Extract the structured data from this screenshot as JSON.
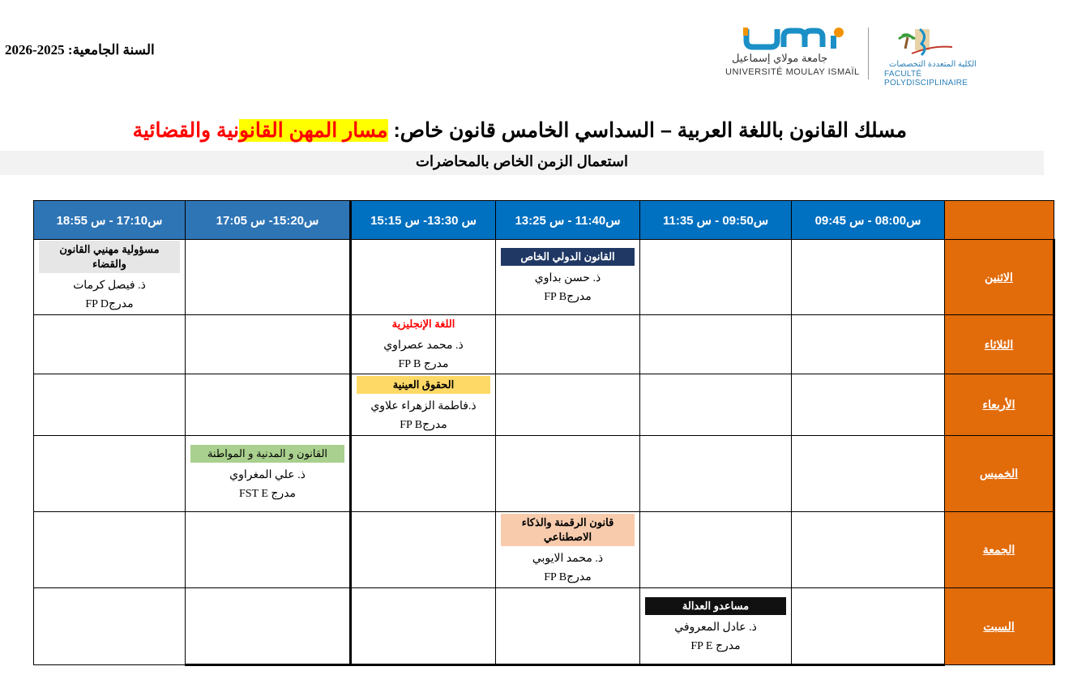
{
  "header": {
    "academic_year": "السنة الجامعية: 2025-2026",
    "university_logo": {
      "ar": "جامعة مولاي إسماعيل",
      "fr": "UNIVERSITÉ MOULAY ISMAÏL"
    },
    "faculty_logo": {
      "ar": "الكلية المتعددة التخصصات",
      "fr": "FACULTÉ POLYDISCIPLINAIRE"
    },
    "title_main": "مسلك القانون باللغة العربية – السداسي الخامس قانون خاص: ",
    "title_track_highlighted": "مسار المهن القانو",
    "title_track_rest": "نية والقضائية",
    "subtitle": "استعمال الزمن الخاص بالمحاضرات"
  },
  "colors": {
    "header_blue": "#0070c0",
    "day_orange": "#e26b0a",
    "title_red": "#ff0000",
    "highlight_yellow": "#ffff00"
  },
  "timetable": {
    "slots": [
      "س08:00 - س 09:45",
      "س09:50 - س 11:35",
      "س11:40 - س 13:25",
      "س 13:30- س 15:15",
      "س15:20- س 17:05",
      "س17:10 - س 18:55"
    ],
    "days": [
      {
        "name": "الاثنين",
        "sessions": {
          "2": {
            "title": "القانون الدولي الخاص",
            "bg": "#1f3864",
            "fg": "#ffffff",
            "prof": "ذ. حسن بداوي",
            "room": "مدرجFP B"
          },
          "5": {
            "title": "مسؤولية مهنيي القانون والقضاء",
            "bg": "#e6e6e6",
            "fg": "#000000",
            "prof": "ذ. فيصل كرمات",
            "room": "مدرجFP D"
          }
        }
      },
      {
        "name": "الثلاثاء",
        "sessions": {
          "3": {
            "title": "اللغة الإنجليزية",
            "bg": "transparent",
            "fg": "#ff0000",
            "prof": "ذ. محمد عصراوي",
            "room": "مدرج FP B"
          }
        }
      },
      {
        "name": "الأربعاء",
        "sessions": {
          "3": {
            "title": "الحقوق العينية",
            "bg": "#ffd966",
            "fg": "#000000",
            "prof": "ذ.فاطمة الزهراء علاوي",
            "room": "مدرجFP B"
          }
        }
      },
      {
        "name": "الخميس",
        "sessions": {
          "4": {
            "title": "القانون و المدنية و المواطنة",
            "bg": "#a9d08e",
            "fg": "#000000",
            "prof": "ذ. علي المغراوي",
            "room": "مدرج  FST E"
          }
        }
      },
      {
        "name": "الجمعة",
        "sessions": {
          "2": {
            "title": "قانون الرقمنة والذكاء الاصطناعي",
            "bg": "#f8cbad",
            "fg": "#000000",
            "prof": "ذ. محمد الايوبي",
            "room": "مدرجFP B"
          }
        }
      },
      {
        "name": "السبت",
        "sessions": {
          "1": {
            "title": "مساعدو العدالة",
            "bg": "#111111",
            "fg": "#ffffff",
            "prof": "ذ. عادل المعروفي",
            "room": "مدرج FP E"
          }
        }
      }
    ]
  }
}
